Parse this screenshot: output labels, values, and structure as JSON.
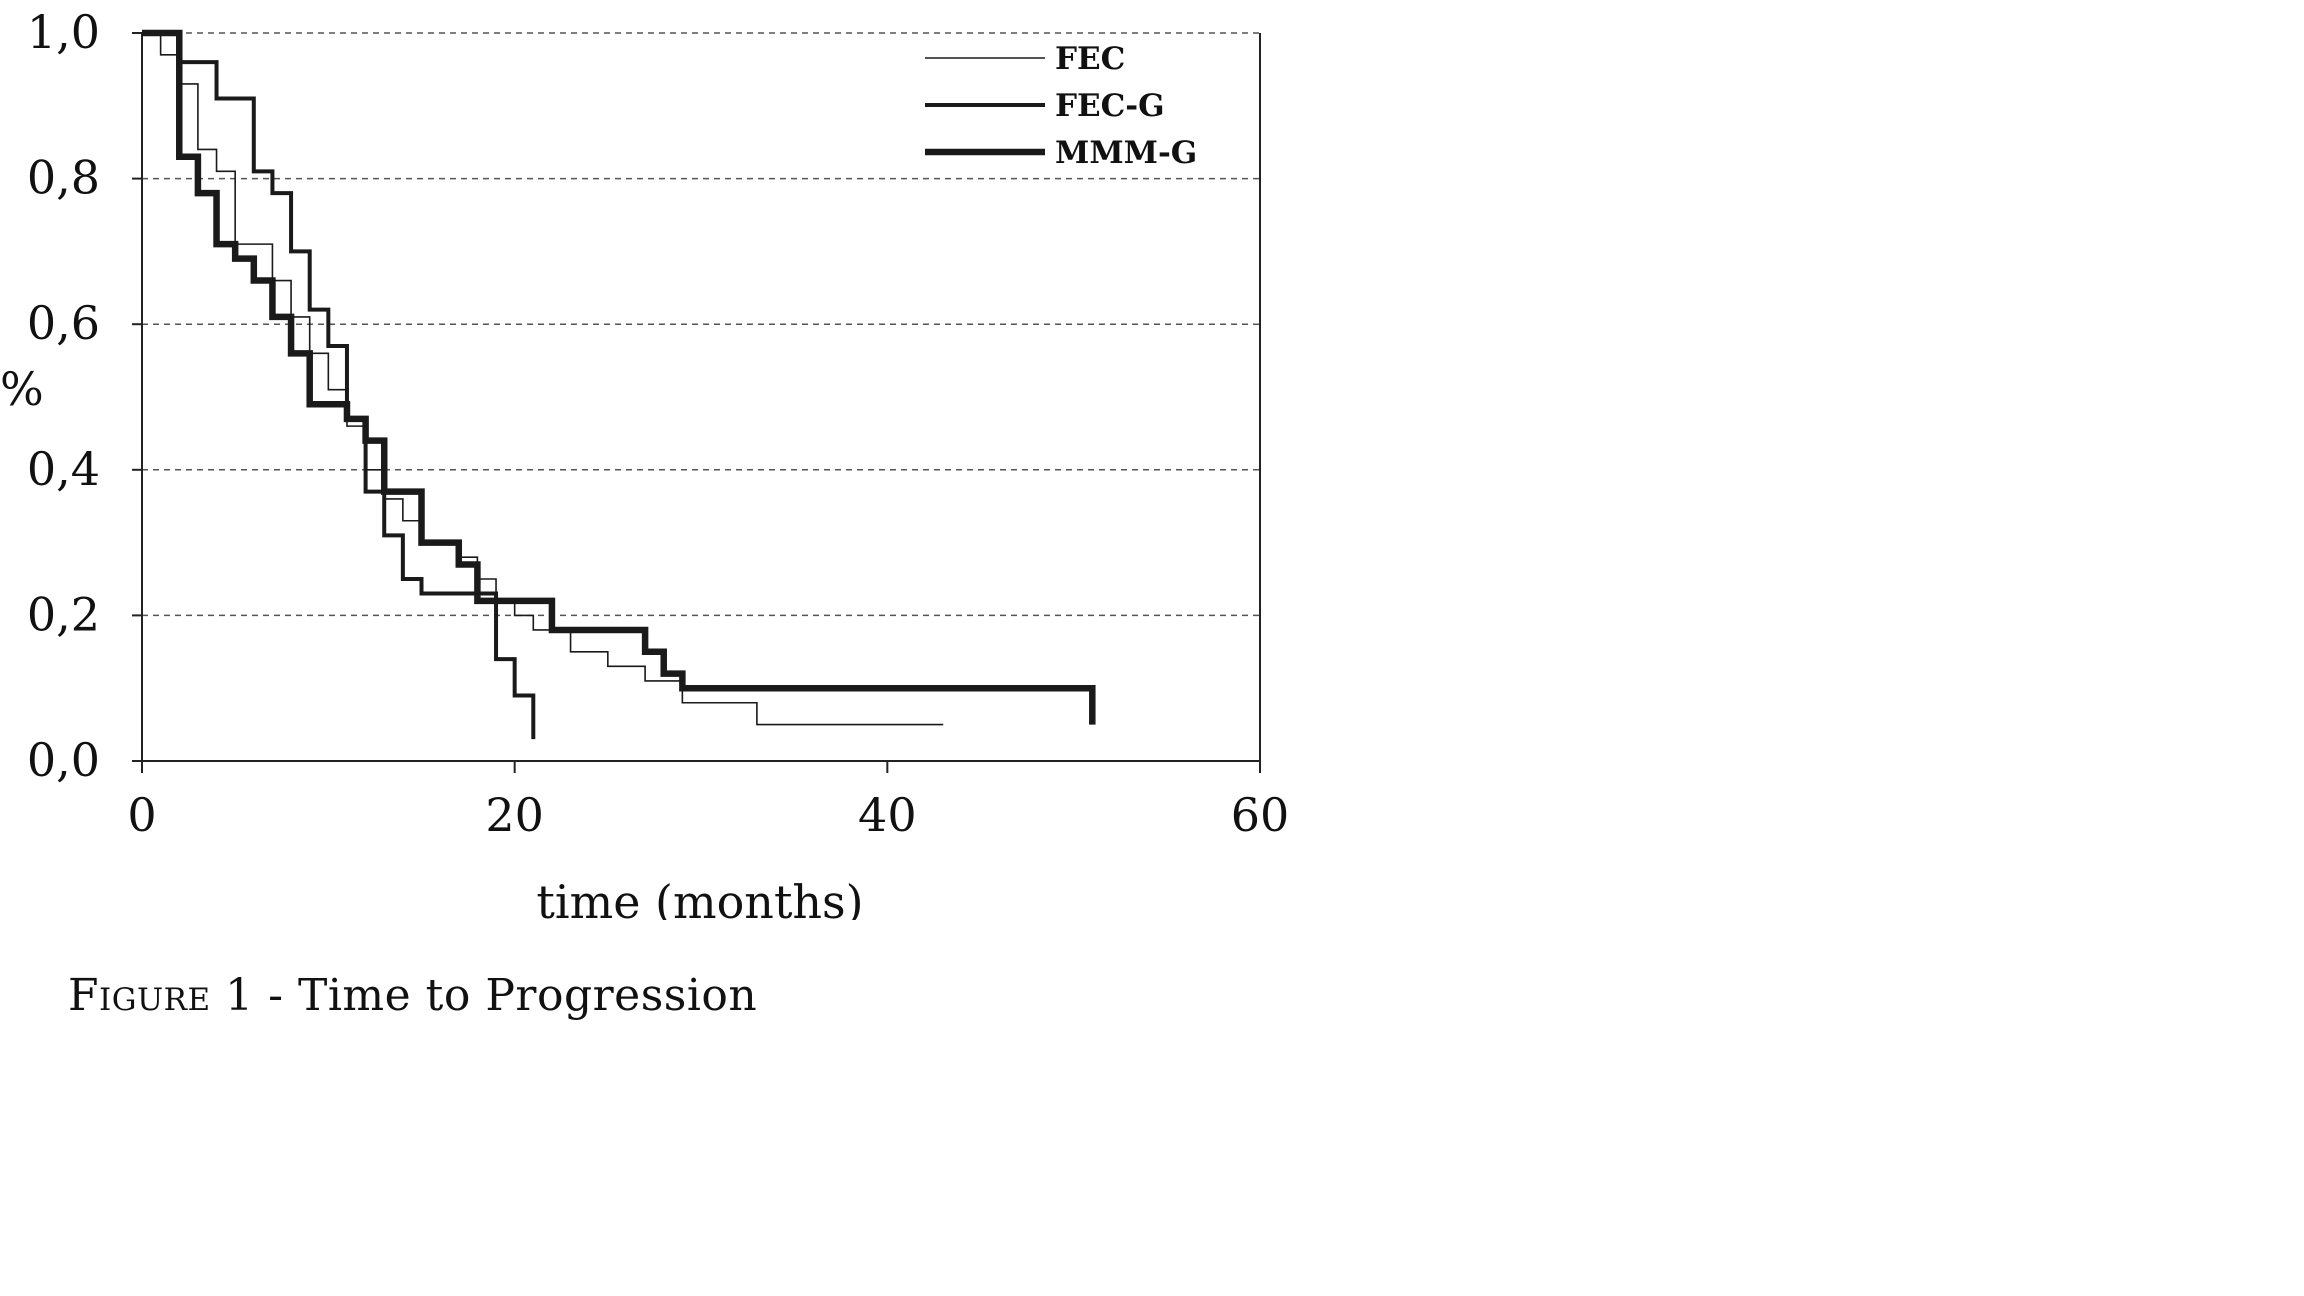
{
  "chart_data": {
    "type": "line",
    "step": true,
    "title": "",
    "xlabel": "time (months)",
    "ylabel": "%",
    "xlim": [
      0,
      60
    ],
    "ylim": [
      0,
      1.0
    ],
    "x_ticks": [
      "0",
      "20",
      "40",
      "60"
    ],
    "x_tick_values": [
      0,
      20,
      40,
      60
    ],
    "y_ticks": [
      "0,0",
      "0,2",
      "0,4",
      "0,6",
      "0,8",
      "1,0"
    ],
    "y_tick_values": [
      0,
      0.2,
      0.4,
      0.6,
      0.8,
      1.0
    ],
    "grid": "horizontal dashed",
    "legend_position": "top-right",
    "series": [
      {
        "name": "FEC",
        "style": "thin",
        "x": [
          0,
          1,
          2,
          3,
          4,
          5,
          7,
          8,
          9,
          10,
          11,
          12,
          13,
          14,
          15,
          17,
          18,
          19,
          20,
          21,
          23,
          25,
          27,
          29,
          33,
          43
        ],
        "y": [
          1.0,
          0.97,
          0.93,
          0.84,
          0.81,
          0.71,
          0.66,
          0.61,
          0.56,
          0.51,
          0.46,
          0.4,
          0.36,
          0.33,
          0.3,
          0.28,
          0.25,
          0.22,
          0.2,
          0.18,
          0.15,
          0.13,
          0.11,
          0.08,
          0.05,
          0.05
        ]
      },
      {
        "name": "FEC-G",
        "style": "medium",
        "x": [
          0,
          2,
          3,
          4,
          6,
          7,
          8,
          9,
          10,
          11,
          12,
          13,
          14,
          15,
          18,
          19,
          20,
          21
        ],
        "y": [
          1.0,
          0.96,
          0.96,
          0.91,
          0.81,
          0.78,
          0.7,
          0.62,
          0.57,
          0.47,
          0.37,
          0.31,
          0.25,
          0.23,
          0.23,
          0.14,
          0.09,
          0.03
        ]
      },
      {
        "name": "MMM-G",
        "style": "thick",
        "x": [
          0,
          2,
          3,
          4,
          5,
          6,
          7,
          8,
          9,
          11,
          12,
          13,
          15,
          17,
          18,
          22,
          27,
          28,
          29,
          51
        ],
        "y": [
          1.0,
          0.83,
          0.78,
          0.71,
          0.69,
          0.66,
          0.61,
          0.56,
          0.49,
          0.47,
          0.44,
          0.37,
          0.3,
          0.27,
          0.22,
          0.18,
          0.15,
          0.12,
          0.1,
          0.05
        ]
      }
    ]
  },
  "caption": {
    "label": "Figure",
    "number": "1",
    "text": "- Time to Progression"
  }
}
